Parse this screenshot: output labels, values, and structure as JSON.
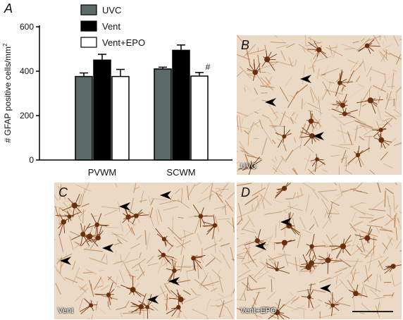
{
  "figure": {
    "panels": {
      "a": "A",
      "b": "B",
      "c": "C",
      "d": "D"
    },
    "image_labels": {
      "b": "UVC",
      "c": "Vent",
      "d": "Vent+EPO"
    },
    "annotations": {
      "significance_marker": "#"
    }
  },
  "chart_data": {
    "type": "bar",
    "categories": [
      "PVWM",
      "SCWM"
    ],
    "series": [
      {
        "name": "UVC",
        "values": [
          376,
          410
        ],
        "errors": [
          16,
          8
        ],
        "color": "#5b6b69"
      },
      {
        "name": "Vent",
        "values": [
          450,
          494
        ],
        "errors": [
          26,
          24
        ],
        "color": "#000000"
      },
      {
        "name": "Vent+EPO",
        "values": [
          376,
          378
        ],
        "errors": [
          32,
          16
        ],
        "color": "#ffffff"
      }
    ],
    "ylabel_prefix": "# GFAP positive cells/mm",
    "ylabel_superscript": "2",
    "ylim": [
      0,
      600
    ],
    "yticks": [
      0,
      200,
      400,
      600
    ],
    "legend_position": "top-left",
    "significance": [
      {
        "category": "SCWM",
        "series": "Vent+EPO",
        "marker": "#"
      }
    ]
  }
}
